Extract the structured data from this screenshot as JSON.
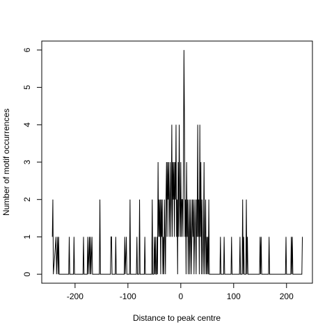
{
  "chart_data": {
    "type": "line",
    "xlabel": "Distance to peak centre",
    "ylabel": "Number of motif occurrences",
    "xlim": [
      -263,
      249
    ],
    "ylim": [
      -0.24,
      6.24
    ],
    "xticks": [
      -200,
      -100,
      0,
      100,
      200
    ],
    "yticks": [
      0,
      1,
      2,
      3,
      4,
      5,
      6
    ],
    "color": "#000000",
    "x": [
      -243,
      -242,
      -241,
      -236,
      -235,
      -233,
      -232,
      -231,
      -230,
      -212,
      -211,
      -210,
      -203,
      -202,
      -201,
      -185,
      -184,
      -183,
      -177,
      -176,
      -175,
      -173,
      -172,
      -171,
      -170,
      -168,
      -167,
      -154,
      -153,
      -152,
      -133,
      -132,
      -131,
      -130,
      -124,
      -123,
      -122,
      -107,
      -106,
      -105,
      -103,
      -102,
      -97,
      -96,
      -95,
      -84,
      -83,
      -82,
      -79,
      -78,
      -77,
      -69,
      -68,
      -67,
      -55,
      -54,
      -53,
      -51,
      -50,
      -49,
      -48,
      -47,
      -46,
      -45,
      -44,
      -43,
      -42,
      -41,
      -40,
      -39,
      -38,
      -37,
      -36,
      -35,
      -34,
      -33,
      -32,
      -31,
      -30,
      -29,
      -28,
      -27,
      -26,
      -25,
      -24,
      -23,
      -22,
      -21,
      -20,
      -19,
      -18,
      -17,
      -16,
      -15,
      -14,
      -13,
      -12,
      -11,
      -10,
      -9,
      -8,
      -7,
      -6,
      -5,
      -4,
      -3,
      -2,
      -1,
      0,
      1,
      2,
      3,
      4,
      5,
      6,
      7,
      8,
      9,
      10,
      11,
      12,
      13,
      14,
      15,
      16,
      17,
      18,
      19,
      20,
      21,
      22,
      23,
      24,
      25,
      26,
      27,
      28,
      29,
      30,
      31,
      32,
      33,
      34,
      35,
      36,
      37,
      38,
      39,
      40,
      41,
      42,
      43,
      44,
      45,
      46,
      47,
      48,
      49,
      50,
      51,
      52,
      53,
      54,
      55,
      74,
      75,
      76,
      81,
      82,
      83,
      95,
      96,
      97,
      111,
      112,
      113,
      116,
      117,
      118,
      119,
      120,
      123,
      124,
      125,
      126,
      127,
      149,
      150,
      151,
      152,
      153,
      166,
      167,
      168,
      198,
      199,
      200,
      208,
      209,
      210,
      211,
      212,
      229,
      230
    ],
    "values": [
      1,
      2,
      0,
      1,
      0,
      1,
      0,
      1,
      0,
      0,
      1,
      0,
      0,
      1,
      0,
      0,
      1,
      0,
      0,
      1,
      0,
      1,
      0,
      1,
      0,
      1,
      0,
      0,
      2,
      0,
      0,
      1,
      1,
      0,
      0,
      1,
      0,
      0,
      1,
      0,
      1,
      0,
      0,
      2,
      0,
      0,
      1,
      0,
      0,
      2,
      0,
      0,
      1,
      0,
      0,
      2,
      0,
      0,
      1,
      0,
      1,
      0,
      0,
      1,
      0,
      3,
      1,
      2,
      1,
      2,
      0,
      2,
      1,
      2,
      0,
      1,
      0,
      2,
      1,
      0,
      2,
      3,
      1,
      3,
      2,
      3,
      1,
      2,
      3,
      1,
      2,
      4,
      1,
      3,
      2,
      3,
      1,
      3,
      2,
      4,
      1,
      2,
      0,
      3,
      1,
      4,
      2,
      1,
      3,
      1,
      2,
      2,
      1,
      3,
      6,
      4,
      1,
      2,
      0,
      3,
      1,
      2,
      0,
      1,
      2,
      0,
      1,
      2,
      0,
      1,
      2,
      1,
      2,
      0,
      1,
      2,
      1,
      0,
      2,
      1,
      4,
      1,
      2,
      0,
      4,
      1,
      3,
      0,
      2,
      1,
      0,
      1,
      3,
      0,
      1,
      2,
      0,
      1,
      0,
      1,
      0,
      2,
      0,
      0,
      0,
      1,
      0,
      0,
      1,
      0,
      0,
      1,
      0,
      0,
      1,
      0,
      0,
      2,
      0,
      1,
      0,
      0,
      2,
      0,
      1,
      0,
      0,
      1,
      0,
      1,
      0,
      0,
      1,
      0,
      0,
      1,
      0,
      0,
      1,
      0,
      1,
      0,
      0,
      1
    ]
  }
}
